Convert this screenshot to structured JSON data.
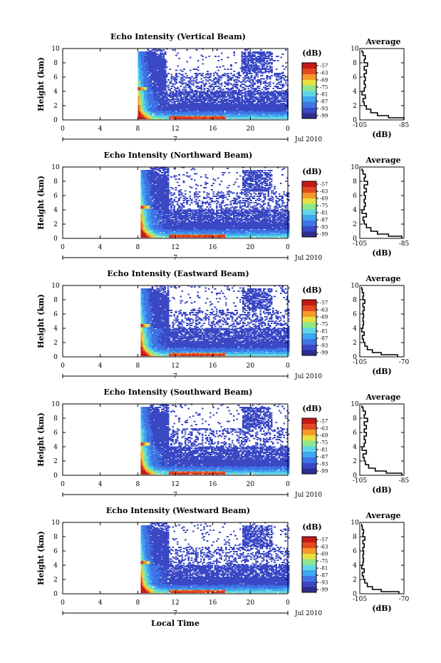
{
  "chart_data": [
    {
      "type": "heatmap",
      "title": "Echo Intensity (Vertical Beam)",
      "ylabel": "Height (km)",
      "yticks": [
        "0",
        "2",
        "4",
        "6",
        "8",
        "10"
      ],
      "ylim": [
        0,
        10
      ],
      "xticks": [
        "0",
        "4",
        "8",
        "12",
        "16",
        "20",
        "0"
      ],
      "xlim": [
        0,
        24
      ],
      "date_marker": "7",
      "date_label": "Jul 2010",
      "colorbar": {
        "unit": "(dB)",
        "ticks": [
          "-57",
          "-63",
          "-69",
          "-75",
          "-81",
          "-87",
          "-93",
          "-99"
        ]
      },
      "data_start_hour": 8.0,
      "average_profile": {
        "title": "Average",
        "xlabel": "(dB)",
        "xticks": [
          "-105",
          "-85"
        ],
        "xlim": [
          -105,
          -85
        ],
        "yticks": [
          "0",
          "2",
          "4",
          "6",
          "8",
          "10"
        ],
        "ylim": [
          0,
          10
        ],
        "heights": [
          0,
          0.3,
          0.6,
          1.0,
          1.5,
          2.0,
          2.5,
          3.0,
          3.5,
          4.0,
          4.5,
          5.0,
          5.5,
          6.0,
          6.5,
          7.0,
          7.5,
          8.0,
          8.5,
          9.0,
          9.5
        ],
        "values": [
          -85,
          -92,
          -97,
          -100,
          -102,
          -103,
          -103.5,
          -102.5,
          -104,
          -103,
          -102.5,
          -103,
          -102.5,
          -103,
          -102,
          -103,
          -101.5,
          -103,
          -102.5,
          -103.5,
          -104
        ]
      }
    },
    {
      "type": "heatmap",
      "title": "Echo Intensity (Northward Beam)",
      "ylabel": "Height (km)",
      "yticks": [
        "0",
        "2",
        "4",
        "6",
        "8",
        "10"
      ],
      "ylim": [
        0,
        10
      ],
      "xticks": [
        "0",
        "4",
        "8",
        "12",
        "16",
        "20",
        "0"
      ],
      "xlim": [
        0,
        24
      ],
      "date_marker": "7",
      "date_label": "Jul 2010",
      "colorbar": {
        "unit": "(dB)",
        "ticks": [
          "-57",
          "-63",
          "-69",
          "-75",
          "-81",
          "-87",
          "-93",
          "-99"
        ]
      },
      "data_start_hour": 8.3,
      "average_profile": {
        "title": "Average",
        "xlabel": "(dB)",
        "xticks": [
          "-105",
          "-85"
        ],
        "xlim": [
          -105,
          -85
        ],
        "yticks": [
          "0",
          "2",
          "4",
          "6",
          "8",
          "10"
        ],
        "ylim": [
          0,
          10
        ],
        "heights": [
          0,
          0.3,
          0.6,
          1.0,
          1.5,
          2.0,
          2.5,
          3.0,
          3.5,
          4.0,
          4.5,
          5.0,
          5.5,
          6.0,
          6.5,
          7.0,
          7.5,
          8.0,
          8.5,
          9.0,
          9.5
        ],
        "values": [
          -86,
          -92,
          -97,
          -100,
          -102,
          -103,
          -103.5,
          -102,
          -104,
          -103,
          -102.5,
          -103,
          -102.5,
          -103,
          -102,
          -103,
          -101.5,
          -103,
          -102.5,
          -103.5,
          -104
        ]
      }
    },
    {
      "type": "heatmap",
      "title": "Echo Intensity (Eastward Beam)",
      "ylabel": "Height (km)",
      "yticks": [
        "0",
        "2",
        "4",
        "6",
        "8",
        "10"
      ],
      "ylim": [
        0,
        10
      ],
      "xticks": [
        "0",
        "4",
        "8",
        "12",
        "16",
        "20",
        "0"
      ],
      "xlim": [
        0,
        24
      ],
      "date_marker": "7",
      "date_label": "Jul 2010",
      "colorbar": {
        "unit": "(dB)",
        "ticks": [
          "-57",
          "-63",
          "-69",
          "-75",
          "-81",
          "-87",
          "-93",
          "-99"
        ]
      },
      "data_start_hour": 8.3,
      "average_profile": {
        "title": "Average",
        "xlabel": "(dB)",
        "xticks": [
          "-105",
          "-70"
        ],
        "xlim": [
          -105,
          -70
        ],
        "yticks": [
          "0",
          "2",
          "4",
          "6",
          "8",
          "10"
        ],
        "ylim": [
          0,
          10
        ],
        "heights": [
          0,
          0.3,
          0.6,
          1.0,
          1.5,
          2.0,
          2.5,
          3.0,
          3.5,
          4.0,
          4.5,
          5.0,
          5.5,
          6.0,
          6.5,
          7.0,
          7.5,
          8.0,
          8.5,
          9.0,
          9.5
        ],
        "values": [
          -75,
          -88,
          -95,
          -99,
          -101,
          -102,
          -103,
          -101.5,
          -103.5,
          -102.5,
          -102,
          -102.5,
          -102,
          -102.5,
          -101.5,
          -102.5,
          -101,
          -102.5,
          -102,
          -103,
          -103.5
        ]
      }
    },
    {
      "type": "heatmap",
      "title": "Echo Intensity (Southward Beam)",
      "ylabel": "Height (km)",
      "yticks": [
        "0",
        "2",
        "4",
        "6",
        "8",
        "10"
      ],
      "ylim": [
        0,
        10
      ],
      "xticks": [
        "0",
        "4",
        "8",
        "12",
        "16",
        "20",
        "0"
      ],
      "xlim": [
        0,
        24
      ],
      "date_marker": "7",
      "date_label": "Jul 2010",
      "colorbar": {
        "unit": "(dB)",
        "ticks": [
          "-57",
          "-63",
          "-69",
          "-75",
          "-81",
          "-87",
          "-93",
          "-99"
        ]
      },
      "data_start_hour": 8.3,
      "average_profile": {
        "title": "Average",
        "xlabel": "(dB)",
        "xticks": [
          "-105",
          "-85"
        ],
        "xlim": [
          -105,
          -85
        ],
        "yticks": [
          "0",
          "2",
          "4",
          "6",
          "8",
          "10"
        ],
        "ylim": [
          0,
          10
        ],
        "heights": [
          0,
          0.3,
          0.6,
          1.0,
          1.5,
          2.0,
          2.5,
          3.0,
          3.5,
          4.0,
          4.5,
          5.0,
          5.5,
          6.0,
          6.5,
          7.0,
          7.5,
          8.0,
          8.5,
          9.0,
          9.5
        ],
        "values": [
          -86,
          -93,
          -98,
          -101,
          -102.5,
          -103,
          -103.5,
          -102,
          -104,
          -103,
          -102.5,
          -103,
          -102,
          -103,
          -102,
          -103,
          -101.5,
          -103,
          -102.5,
          -103.5,
          -104
        ]
      }
    },
    {
      "type": "heatmap",
      "title": "Echo Intensity (Westward Beam)",
      "ylabel": "Height (km)",
      "yticks": [
        "0",
        "2",
        "4",
        "6",
        "8",
        "10"
      ],
      "ylim": [
        0,
        10
      ],
      "xticks": [
        "0",
        "4",
        "8",
        "12",
        "16",
        "20",
        "0"
      ],
      "xlim": [
        0,
        24
      ],
      "date_marker": "7",
      "date_label": "Jul 2010",
      "xlabel": "Local Time",
      "colorbar": {
        "unit": "(dB)",
        "ticks": [
          "-57",
          "-63",
          "-69",
          "-75",
          "-81",
          "-87",
          "-93",
          "-99"
        ]
      },
      "data_start_hour": 8.3,
      "average_profile": {
        "title": "Average",
        "xlabel": "(dB)",
        "xticks": [
          "-105",
          "-70"
        ],
        "xlim": [
          -105,
          -70
        ],
        "yticks": [
          "0",
          "2",
          "4",
          "6",
          "8",
          "10"
        ],
        "ylim": [
          0,
          10
        ],
        "heights": [
          0,
          0.3,
          0.6,
          1.0,
          1.5,
          2.0,
          2.5,
          3.0,
          3.5,
          4.0,
          4.5,
          5.0,
          5.5,
          6.0,
          6.5,
          7.0,
          7.5,
          8.0,
          8.5,
          9.0,
          9.5
        ],
        "values": [
          -74,
          -88,
          -95,
          -99,
          -101,
          -102,
          -103,
          -101.5,
          -103.5,
          -102.5,
          -102,
          -102.5,
          -102,
          -102.5,
          -101.5,
          -102.5,
          -101,
          -102.5,
          -102,
          -103,
          -103.5
        ]
      }
    }
  ]
}
